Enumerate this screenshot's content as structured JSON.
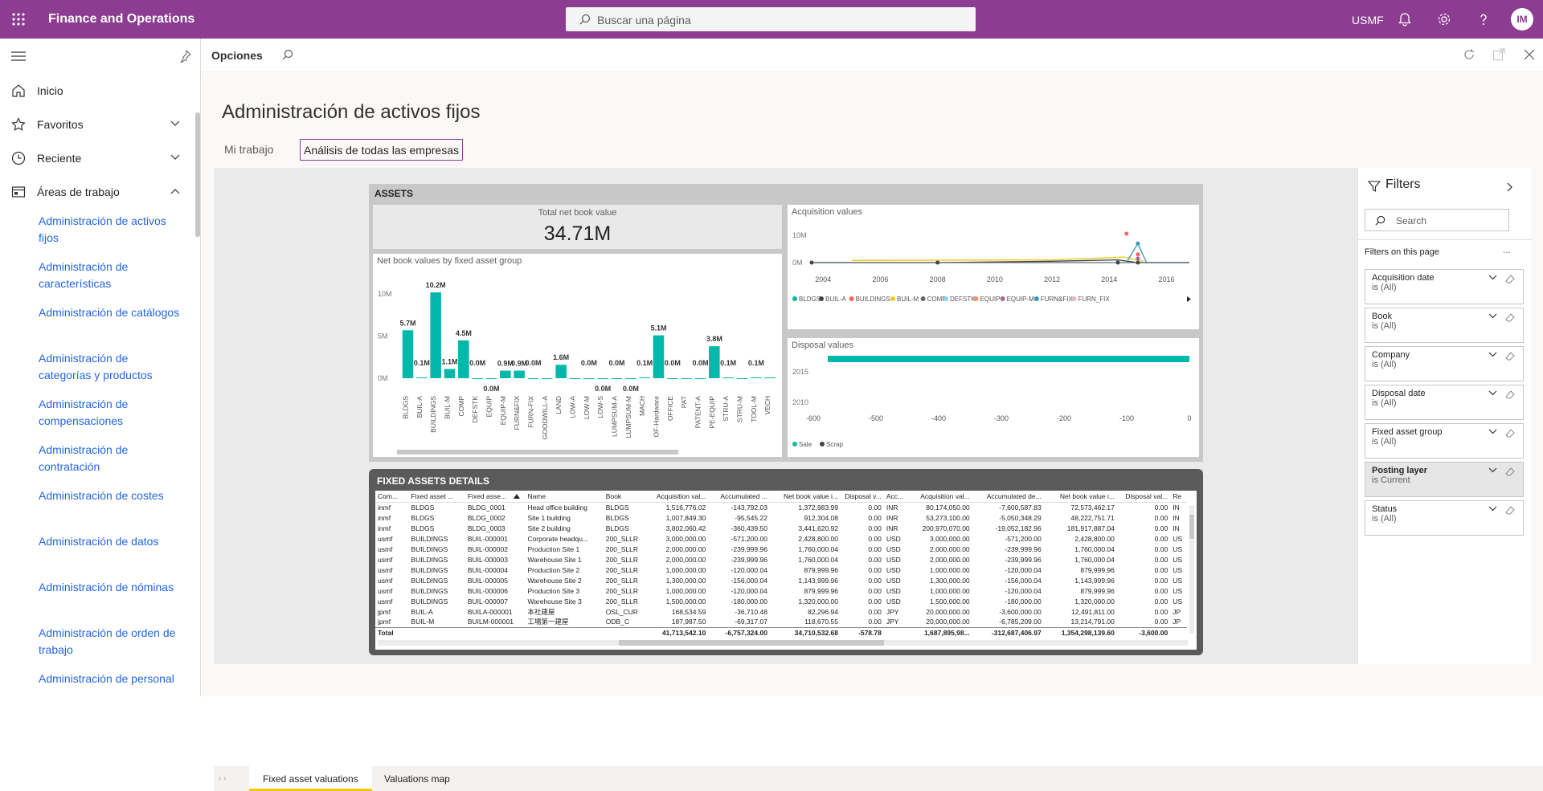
{
  "app": {
    "title": "Finance and Operations",
    "search_placeholder": "Buscar una página",
    "company": "USMF",
    "user_initials": "IM"
  },
  "nav": {
    "items": [
      {
        "label": "Inicio"
      },
      {
        "label": "Favoritos"
      },
      {
        "label": "Reciente"
      },
      {
        "label": "Áreas de trabajo"
      }
    ],
    "workspaces": [
      "Administración de activos fijos",
      "Administración de características",
      "Administración de catálogos",
      "Administración de categorías y productos",
      "Administración de compensaciones",
      "Administración de contratación",
      "Administración de costes",
      "Administración de datos",
      "Administración de nóminas",
      "Administración de orden de trabajo",
      "Administración de personal"
    ]
  },
  "options": {
    "label": "Opciones"
  },
  "page": {
    "title": "Administración de activos fijos",
    "tabs": [
      "Mi trabajo",
      "Análisis de todas las empresas"
    ]
  },
  "report": {
    "assets_title": "ASSETS",
    "kpi": {
      "label": "Total net book value",
      "value": "34.71M"
    },
    "details_title": "FIXED ASSETS DETAILS",
    "bottom_tabs": [
      "Fixed asset valuations",
      "Valuations map"
    ]
  },
  "chart_data": [
    {
      "type": "bar",
      "title": "Net book values by fixed asset group",
      "categories": [
        "BLDGS",
        "BUIL-A",
        "BUILDINGS",
        "BUIL-M",
        "COMP",
        "DEFSTK",
        "EQUIP",
        "EQUIP-M",
        "FURN&FIX",
        "FURN-FIX",
        "GOODWILL-A",
        "LAND",
        "LOW-A",
        "LOW-M",
        "LOW-S",
        "LUMPSUM-A",
        "LUMPSUM-M",
        "MACH",
        "OF-Hardware",
        "OFFICE",
        "PAT",
        "PATENT-A",
        "PE-EQUIP",
        "STRU-A",
        "STRU-M",
        "TOOL-M",
        "VECH"
      ],
      "values": [
        5.7,
        0.1,
        10.2,
        1.1,
        4.5,
        0.0,
        0.0,
        0.9,
        0.9,
        0.0,
        0.0,
        1.6,
        0.0,
        0.0,
        0.0,
        0.0,
        0.0,
        0.1,
        5.1,
        0.0,
        0.0,
        0.0,
        3.8,
        0.1,
        0.0,
        0.1,
        0.1
      ],
      "labels": [
        "5.7M",
        "0.1M",
        "10.2M",
        "1.1M",
        "4.5M",
        "0.0M",
        "0.0M",
        "0.9M",
        "0.9M",
        "0.0M",
        "",
        "1.6M",
        "",
        "0.0M",
        "0.0M",
        "0.0M",
        "0.0M",
        "0.1M",
        "5.1M",
        "0.0M",
        "",
        "0.0M",
        "3.8M",
        "0.1M",
        "",
        "0.1M",
        ""
      ],
      "yticks": [
        "10M",
        "5M",
        "0M"
      ],
      "ylim": [
        0,
        10.5
      ]
    },
    {
      "type": "line",
      "title": "Acquisition values",
      "x": [
        "2004",
        "2006",
        "2008",
        "2010",
        "2012",
        "2014",
        "2016"
      ],
      "yticks": [
        "10M",
        "0M"
      ],
      "legend": [
        "BLDGS",
        "BUIL-A",
        "BUILDINGS",
        "BUIL-M",
        "COMP",
        "DEFSTK",
        "EQUIP",
        "EQUIP-M",
        "FURN&FIX",
        "FURN_FIX"
      ],
      "legend_colors": [
        "#01b8aa",
        "#374649",
        "#fd625e",
        "#f2c80f",
        "#5f6b6d",
        "#8ad4eb",
        "#fe9666",
        "#a66999",
        "#3599b8",
        "#dfbfbf"
      ]
    },
    {
      "type": "bar",
      "title": "Disposal values",
      "y_categories": [
        "2015",
        "2010"
      ],
      "xticks": [
        "-600",
        "-500",
        "-400",
        "-300",
        "-200",
        "-100",
        "0"
      ],
      "legend": [
        "Sale",
        "Scrap"
      ],
      "legend_colors": [
        "#01b8aa",
        "#374649"
      ]
    }
  ],
  "table": {
    "headers": [
      "Com...",
      "Fixed asset ...",
      "Fixed asse...",
      "Name",
      "Book",
      "Acquisition val...",
      "Accumulated ...",
      "Net book value i...",
      "Disposal v...",
      "Acc...",
      "Acquisition val...",
      "Accumulated de...",
      "Net book value i...",
      "Disposal val...",
      "Re"
    ],
    "rows": [
      [
        "inmf",
        "BLDGS",
        "BLDG_0001",
        "Head office building",
        "BLDGS",
        "1,516,776.02",
        "-143,792.03",
        "1,372,983.99",
        "0.00",
        "INR",
        "80,174,050.00",
        "-7,600,587.83",
        "72,573,462.17",
        "0.00",
        "IN"
      ],
      [
        "inmf",
        "BLDGS",
        "BLDG_0002",
        "Site 1 building",
        "BLDGS",
        "1,007,849.30",
        "-95,545.22",
        "912,304.08",
        "0.00",
        "INR",
        "53,273,100.00",
        "-5,050,348.29",
        "48,222,751.71",
        "0.00",
        "IN"
      ],
      [
        "inmf",
        "BLDGS",
        "BLDG_0003",
        "Site 2 building",
        "BLDGS",
        "3,802,060.42",
        "-360,439.50",
        "3,441,620.92",
        "0.00",
        "INR",
        "200,970,070.00",
        "-19,052,182.96",
        "181,917,887.04",
        "0.00",
        "IN"
      ],
      [
        "usmf",
        "BUILDINGS",
        "BUIL-000001",
        "Corporate headqu...",
        "200_SLLR",
        "3,000,000.00",
        "-571,200.00",
        "2,428,800.00",
        "0.00",
        "USD",
        "3,000,000.00",
        "-571,200.00",
        "2,428,800.00",
        "0.00",
        "US"
      ],
      [
        "usmf",
        "BUILDINGS",
        "BUIL-000002",
        "Production Site 1",
        "200_SLLR",
        "2,000,000.00",
        "-239,999.96",
        "1,760,000.04",
        "0.00",
        "USD",
        "2,000,000.00",
        "-239,999.96",
        "1,760,000.04",
        "0.00",
        "US"
      ],
      [
        "usmf",
        "BUILDINGS",
        "BUIL-000003",
        "Warehouse Site 1",
        "200_SLLR",
        "2,000,000.00",
        "-239,999.96",
        "1,760,000.04",
        "0.00",
        "USD",
        "2,000,000.00",
        "-239,999.96",
        "1,760,000.04",
        "0.00",
        "US"
      ],
      [
        "usmf",
        "BUILDINGS",
        "BUIL-000004",
        "Production Site 2",
        "200_SLLR",
        "1,000,000.00",
        "-120,000.04",
        "879,999.96",
        "0.00",
        "USD",
        "1,000,000.00",
        "-120,000.04",
        "879,999.96",
        "0.00",
        "US"
      ],
      [
        "usmf",
        "BUILDINGS",
        "BUIL-000005",
        "Warehouse Site 2",
        "200_SLLR",
        "1,300,000.00",
        "-156,000.04",
        "1,143,999.96",
        "0.00",
        "USD",
        "1,300,000.00",
        "-156,000.04",
        "1,143,999.96",
        "0.00",
        "US"
      ],
      [
        "usmf",
        "BUILDINGS",
        "BUIL-000006",
        "Production Site 3",
        "200_SLLR",
        "1,000,000.00",
        "-120,000.04",
        "879,999.96",
        "0.00",
        "USD",
        "1,000,000.00",
        "-120,000.04",
        "879,999.96",
        "0.00",
        "US"
      ],
      [
        "usmf",
        "BUILDINGS",
        "BUIL-000007",
        "Warehouse Site 3",
        "200_SLLR",
        "1,500,000.00",
        "-180,000.00",
        "1,320,000.00",
        "0.00",
        "USD",
        "1,500,000.00",
        "-180,000.00",
        "1,320,000.00",
        "0.00",
        "US"
      ],
      [
        "jpmf",
        "BUIL-A",
        "BUILA-000001",
        "本社建屋",
        "OSL_CUR",
        "168,534.59",
        "-36,710.48",
        "82,296.94",
        "0.00",
        "JPY",
        "20,000,000.00",
        "-3,600,000.00",
        "12,491,811.00",
        "0.00",
        "JP"
      ],
      [
        "jpmf",
        "BUIL-M",
        "BUILM-000001",
        "工場第一建屋",
        "ODB_C",
        "187,987.50",
        "-69,317.07",
        "118,670.55",
        "0.00",
        "JPY",
        "20,000,000.00",
        "-6,785,209.00",
        "13,214,791.00",
        "0.00",
        "JP"
      ]
    ],
    "total": [
      "Total",
      "",
      "",
      "",
      "",
      "41,713,542.10",
      "-6,757,324.00",
      "34,710,532.68",
      "-578.78",
      "",
      "1,687,895,98...",
      "-312,687,406.97",
      "1,354,298,139.60",
      "-3,600.00",
      ""
    ]
  },
  "filters": {
    "title": "Filters",
    "search_placeholder": "Search",
    "section_label": "Filters on this page",
    "more": "...",
    "cards": [
      {
        "name": "Acquisition date",
        "value": "is (All)"
      },
      {
        "name": "Book",
        "value": "is (All)"
      },
      {
        "name": "Company",
        "value": "is (All)"
      },
      {
        "name": "Disposal date",
        "value": "is (All)"
      },
      {
        "name": "Fixed asset group",
        "value": "is (All)"
      },
      {
        "name": "Posting layer",
        "value": "is Current"
      },
      {
        "name": "Status",
        "value": "is (All)"
      }
    ]
  }
}
